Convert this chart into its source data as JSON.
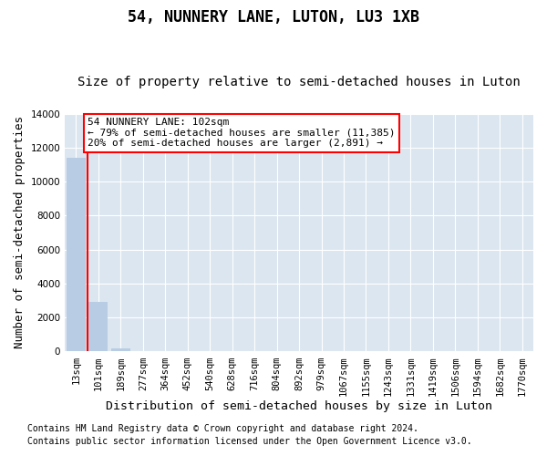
{
  "title": "54, NUNNERY LANE, LUTON, LU3 1XB",
  "subtitle": "Size of property relative to semi-detached houses in Luton",
  "xlabel": "Distribution of semi-detached houses by size in Luton",
  "ylabel": "Number of semi-detached properties",
  "categories": [
    "13sqm",
    "101sqm",
    "189sqm",
    "277sqm",
    "364sqm",
    "452sqm",
    "540sqm",
    "628sqm",
    "716sqm",
    "804sqm",
    "892sqm",
    "979sqm",
    "1067sqm",
    "1155sqm",
    "1243sqm",
    "1331sqm",
    "1419sqm",
    "1506sqm",
    "1594sqm",
    "1682sqm",
    "1770sqm"
  ],
  "values": [
    11385,
    2891,
    200,
    0,
    0,
    0,
    0,
    0,
    0,
    0,
    0,
    0,
    0,
    0,
    0,
    0,
    0,
    0,
    0,
    0,
    0
  ],
  "bar_color": "#b8cce4",
  "annotation_text": "54 NUNNERY LANE: 102sqm\n← 79% of semi-detached houses are smaller (11,385)\n20% of semi-detached houses are larger (2,891) →",
  "annotation_box_color": "#ffffff",
  "annotation_border_color": "#ff0000",
  "ylim": [
    0,
    14000
  ],
  "yticks": [
    0,
    2000,
    4000,
    6000,
    8000,
    10000,
    12000,
    14000
  ],
  "footer_line1": "Contains HM Land Registry data © Crown copyright and database right 2024.",
  "footer_line2": "Contains public sector information licensed under the Open Government Licence v3.0.",
  "fig_bg_color": "#ffffff",
  "plot_bg_color": "#dce6f1",
  "grid_color": "#ffffff",
  "redline_color": "#ff0000",
  "title_fontsize": 12,
  "subtitle_fontsize": 10,
  "axis_label_fontsize": 9,
  "tick_fontsize": 7.5,
  "footer_fontsize": 7,
  "annot_fontsize": 8
}
